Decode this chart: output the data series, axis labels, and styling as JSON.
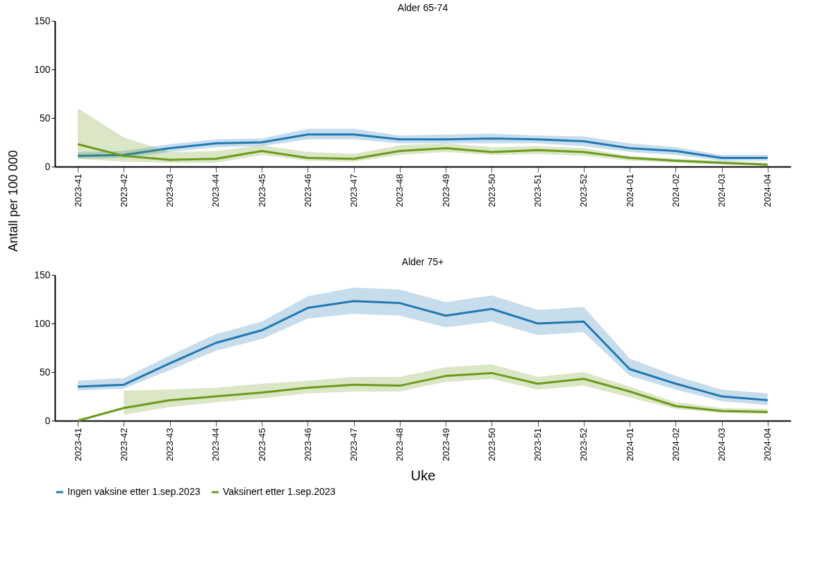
{
  "chart_data": [
    {
      "type": "line",
      "title": "Alder 65-74",
      "ylabel": "Antall per 100 000",
      "categories": [
        "2023-41",
        "2023-42",
        "2023-43",
        "2023-44",
        "2023-45",
        "2023-46",
        "2023-47",
        "2023-48",
        "2023-49",
        "2023-50",
        "2023-51",
        "2023-52",
        "2024-01",
        "2024-02",
        "2024-03",
        "2024-04"
      ],
      "ylim": [
        0,
        150
      ],
      "yticks": [
        0,
        50,
        100,
        150
      ],
      "grid": false,
      "legend": "bottom",
      "series": [
        {
          "name": "Ingen vaksine etter 1.sep.2023",
          "color": "#1f78b4",
          "values": [
            11,
            12,
            19,
            24,
            25,
            33,
            33,
            28,
            28,
            29,
            28,
            26,
            19,
            16,
            9,
            9
          ],
          "lower": [
            8,
            9,
            15,
            20,
            21,
            28,
            28,
            24,
            24,
            24,
            24,
            21,
            15,
            12,
            6,
            6
          ],
          "upper": [
            15,
            16,
            23,
            28,
            29,
            39,
            39,
            32,
            33,
            34,
            32,
            31,
            24,
            20,
            12,
            12
          ]
        },
        {
          "name": "Vaksinert etter 1.sep.2023",
          "color": "#6b9a1a",
          "values": [
            23,
            11,
            7,
            8,
            16,
            9,
            8,
            16,
            19,
            15,
            17,
            15,
            9,
            6,
            4,
            2
          ],
          "lower": [
            8,
            5,
            4,
            4,
            12,
            6,
            5,
            12,
            15,
            12,
            13,
            11,
            6,
            4,
            2,
            1
          ],
          "upper": [
            60,
            30,
            15,
            16,
            22,
            15,
            13,
            22,
            24,
            20,
            21,
            19,
            11,
            8,
            6,
            4
          ]
        }
      ]
    },
    {
      "type": "line",
      "title": "Alder 75+",
      "xlabel": "Uke",
      "categories": [
        "2023-41",
        "2023-42",
        "2023-43",
        "2023-44",
        "2023-45",
        "2023-46",
        "2023-47",
        "2023-48",
        "2023-49",
        "2023-50",
        "2023-51",
        "2023-52",
        "2024-01",
        "2024-02",
        "2024-03",
        "2024-04"
      ],
      "ylim": [
        0,
        150
      ],
      "yticks": [
        0,
        50,
        100,
        150
      ],
      "grid": false,
      "legend": "bottom",
      "series": [
        {
          "name": "Ingen vaksine etter 1.sep.2023",
          "color": "#1f78b4",
          "values": [
            35,
            37,
            59,
            80,
            93,
            116,
            123,
            121,
            108,
            115,
            100,
            102,
            53,
            38,
            25,
            21
          ],
          "lower": [
            31,
            33,
            52,
            72,
            84,
            105,
            110,
            108,
            96,
            102,
            88,
            91,
            46,
            32,
            20,
            16
          ],
          "upper": [
            41,
            44,
            67,
            89,
            102,
            128,
            137,
            135,
            122,
            129,
            114,
            117,
            64,
            46,
            32,
            28
          ]
        },
        {
          "name": "Vaksinert etter 1.sep.2023",
          "color": "#6b9a1a",
          "values": [
            0,
            13,
            21,
            25,
            29,
            34,
            37,
            36,
            46,
            49,
            38,
            43,
            30,
            15,
            10,
            9
          ],
          "lower": [
            null,
            6,
            14,
            19,
            23,
            28,
            30,
            30,
            40,
            43,
            32,
            36,
            24,
            12,
            8,
            7
          ],
          "upper": [
            null,
            31,
            32,
            34,
            38,
            41,
            45,
            45,
            55,
            58,
            45,
            50,
            35,
            19,
            13,
            12
          ]
        }
      ]
    }
  ]
}
